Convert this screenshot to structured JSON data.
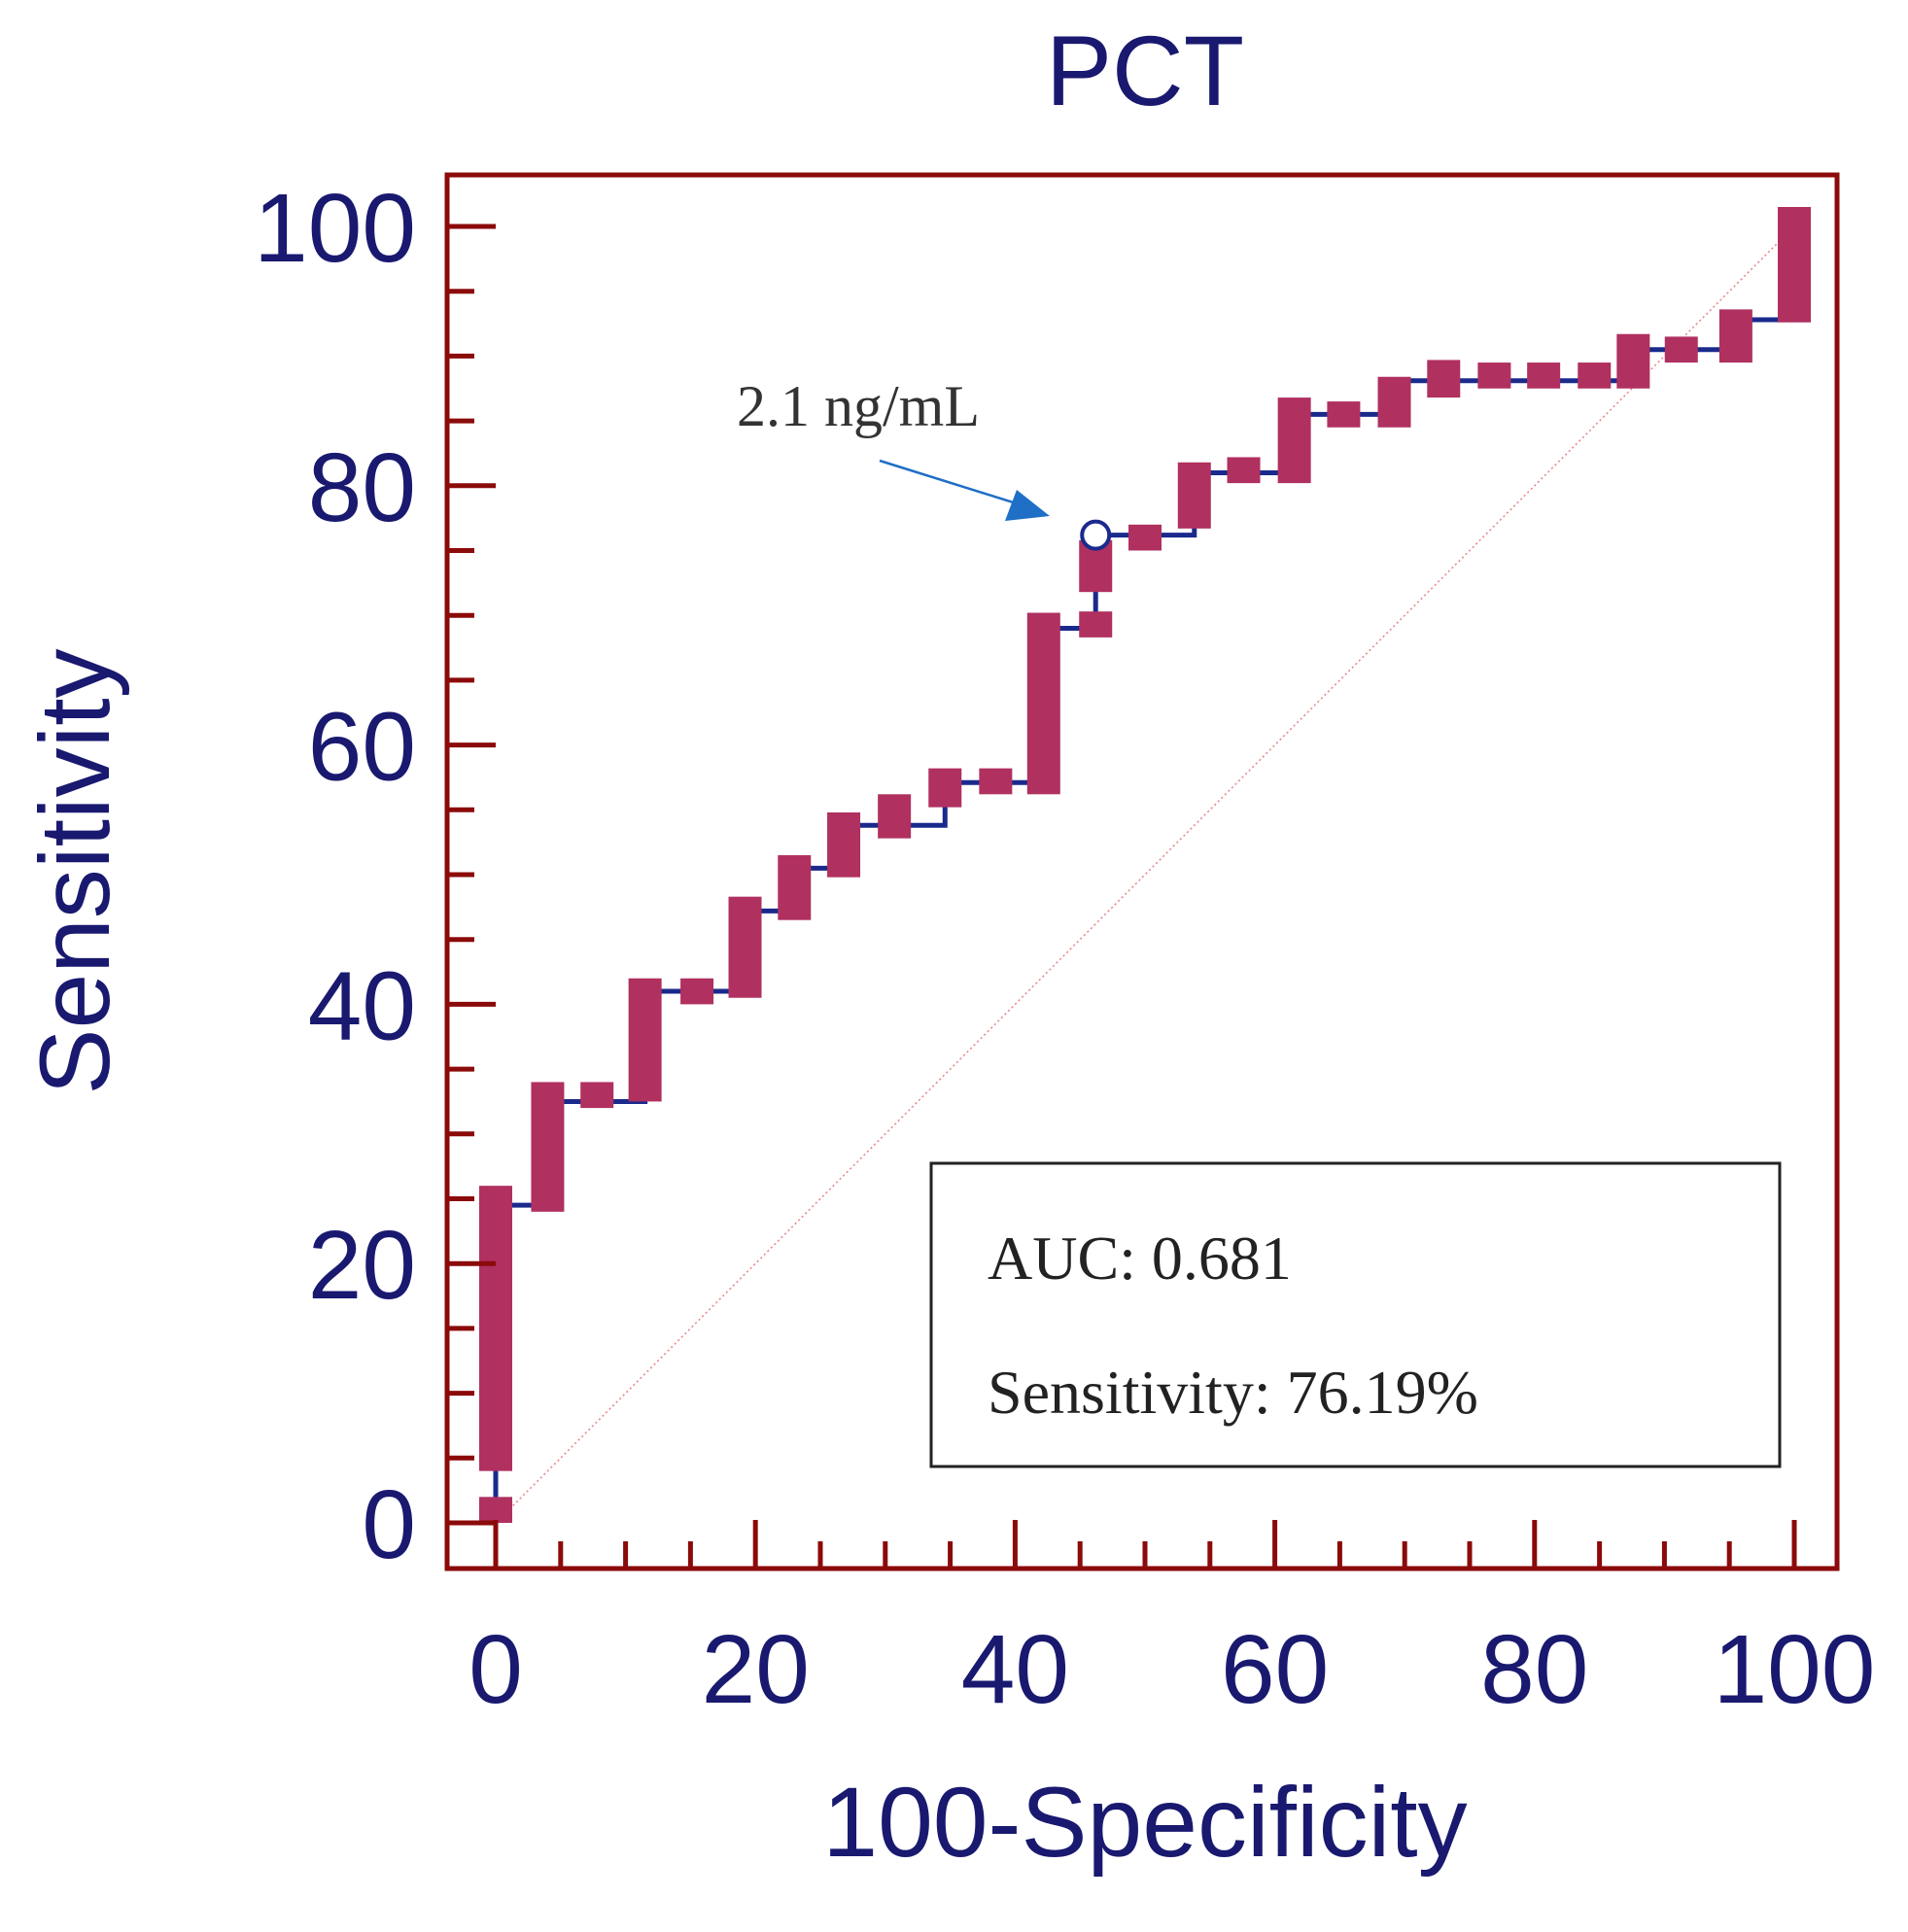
{
  "chart_data": {
    "type": "line",
    "subtype": "ROC curve (step) with confidence bars",
    "title": "PCT",
    "xlabel": "100-Specificity",
    "ylabel": "Sensitivity",
    "xlim": [
      0,
      100
    ],
    "ylim": [
      0,
      100
    ],
    "x_ticks": [
      0,
      20,
      40,
      60,
      80,
      100
    ],
    "y_ticks": [
      0,
      20,
      40,
      60,
      80,
      100
    ],
    "x_minor_step": 5,
    "y_minor_step": 5,
    "series": [
      {
        "name": "ROC",
        "points": [
          {
            "x": 0,
            "y": 0
          },
          {
            "x": 0,
            "y": 3.8
          },
          {
            "x": 0,
            "y": 24.5
          },
          {
            "x": 4,
            "y": 24.5
          },
          {
            "x": 4,
            "y": 32.5
          },
          {
            "x": 11.5,
            "y": 32.5
          },
          {
            "x": 11.5,
            "y": 41.0
          },
          {
            "x": 19.2,
            "y": 41.0
          },
          {
            "x": 19.2,
            "y": 47.2
          },
          {
            "x": 23,
            "y": 47.2
          },
          {
            "x": 23,
            "y": 50.5
          },
          {
            "x": 26.8,
            "y": 50.5
          },
          {
            "x": 26.8,
            "y": 53.8
          },
          {
            "x": 34.6,
            "y": 53.8
          },
          {
            "x": 34.6,
            "y": 57.1
          },
          {
            "x": 42.2,
            "y": 57.1
          },
          {
            "x": 42.2,
            "y": 69.0
          },
          {
            "x": 46.2,
            "y": 69.0
          },
          {
            "x": 46.2,
            "y": 76.19
          },
          {
            "x": 53.8,
            "y": 76.19
          },
          {
            "x": 53.8,
            "y": 81.0
          },
          {
            "x": 61.5,
            "y": 81.0
          },
          {
            "x": 61.5,
            "y": 85.5
          },
          {
            "x": 69.2,
            "y": 85.5
          },
          {
            "x": 69.2,
            "y": 88.1
          },
          {
            "x": 87.6,
            "y": 88.1
          },
          {
            "x": 87.6,
            "y": 90.5
          },
          {
            "x": 95.5,
            "y": 90.5
          },
          {
            "x": 95.5,
            "y": 92.8
          },
          {
            "x": 100,
            "y": 92.8
          },
          {
            "x": 100,
            "y": 100
          }
        ]
      }
    ],
    "ci_bars": [
      {
        "x": 0,
        "ylo": 0,
        "yhi": 2
      },
      {
        "x": 0,
        "ylo": 4,
        "yhi": 26
      },
      {
        "x": 4,
        "ylo": 24,
        "yhi": 34
      },
      {
        "x": 7.8,
        "ylo": 32,
        "yhi": 34
      },
      {
        "x": 11.5,
        "ylo": 32.5,
        "yhi": 42
      },
      {
        "x": 15.5,
        "ylo": 40,
        "yhi": 42
      },
      {
        "x": 19.2,
        "ylo": 40.5,
        "yhi": 48.3
      },
      {
        "x": 23,
        "ylo": 46.5,
        "yhi": 51.5
      },
      {
        "x": 26.8,
        "ylo": 49.8,
        "yhi": 54.8
      },
      {
        "x": 30.7,
        "ylo": 52.8,
        "yhi": 56.2
      },
      {
        "x": 34.6,
        "ylo": 55.2,
        "yhi": 58.2
      },
      {
        "x": 38.5,
        "ylo": 56.2,
        "yhi": 58.2
      },
      {
        "x": 42.2,
        "ylo": 56.2,
        "yhi": 70.2
      },
      {
        "x": 46.2,
        "ylo": 68.3,
        "yhi": 70.3
      },
      {
        "x": 46.2,
        "ylo": 71.8,
        "yhi": 75.8
      },
      {
        "x": 50,
        "ylo": 75,
        "yhi": 77
      },
      {
        "x": 53.8,
        "ylo": 76.7,
        "yhi": 81.8
      },
      {
        "x": 57.6,
        "ylo": 80.2,
        "yhi": 82.2
      },
      {
        "x": 61.5,
        "ylo": 80.2,
        "yhi": 86.8
      },
      {
        "x": 65.3,
        "ylo": 84.5,
        "yhi": 86.5
      },
      {
        "x": 69.2,
        "ylo": 84.5,
        "yhi": 88.4
      },
      {
        "x": 73,
        "ylo": 86.8,
        "yhi": 89.7
      },
      {
        "x": 76.9,
        "ylo": 87.5,
        "yhi": 89.5
      },
      {
        "x": 80.7,
        "ylo": 87.5,
        "yhi": 89.5
      },
      {
        "x": 84.6,
        "ylo": 87.5,
        "yhi": 89.5
      },
      {
        "x": 87.6,
        "ylo": 87.5,
        "yhi": 91.7
      },
      {
        "x": 91.3,
        "ylo": 89.5,
        "yhi": 91.5
      },
      {
        "x": 95.5,
        "ylo": 89.5,
        "yhi": 93.6
      },
      {
        "x": 100,
        "ylo": 92.6,
        "yhi": 101.5
      }
    ],
    "reference_line": {
      "from": [
        0,
        0
      ],
      "to": [
        100,
        100
      ],
      "style": "dotted"
    },
    "optimal_point": {
      "x": 46.2,
      "y": 76.19
    },
    "annotations": [
      {
        "text": "2.1 ng/mL",
        "points_to": [
          46.2,
          76.19
        ]
      }
    ],
    "info_box": {
      "lines": [
        "AUC: 0.681",
        "Sensitivity: 76.19%"
      ],
      "placement": "bottom-right"
    },
    "colors": {
      "frame": "#8b0a0a",
      "text": "#191970",
      "curve": "#1a2a8c",
      "ci": "#b03060",
      "reference": "#e88888",
      "arrow": "#1f6fc6",
      "note": "#333333"
    }
  }
}
